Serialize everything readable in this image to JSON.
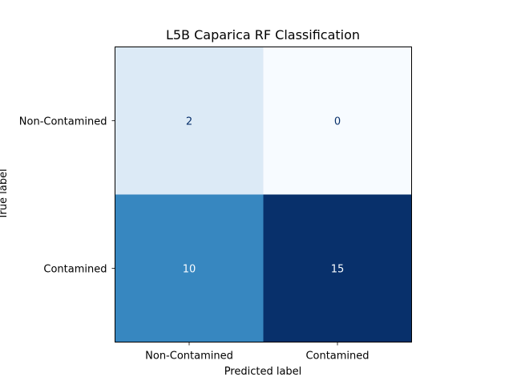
{
  "chart_data": {
    "type": "heatmap",
    "title": "L5B Caparica RF Classification",
    "xlabel": "Predicted label",
    "ylabel": "True label",
    "x_categories": [
      "Non-Contamined",
      "Contamined"
    ],
    "y_categories": [
      "Non-Contamined",
      "Contamined"
    ],
    "values": [
      [
        2,
        0
      ],
      [
        10,
        15
      ]
    ],
    "colormap": "Blues",
    "vmin": 0,
    "vmax": 15,
    "grid": false,
    "colorbar": false
  }
}
